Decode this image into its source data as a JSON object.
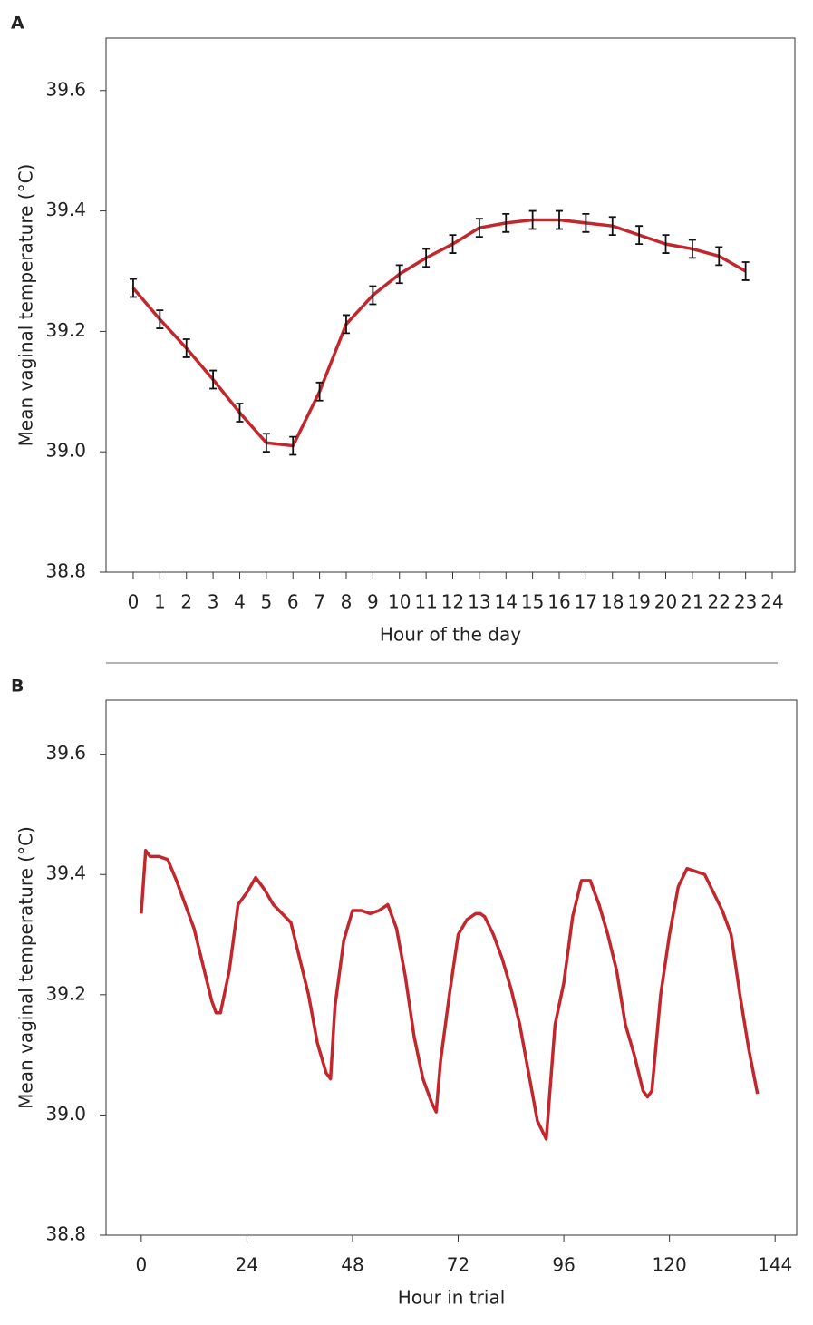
{
  "chart_data": [
    {
      "type": "line",
      "panel": "A",
      "xlabel": "Hour of the day",
      "ylabel": "Mean vaginal temperature (°C)",
      "x": [
        0,
        1,
        2,
        3,
        4,
        5,
        6,
        7,
        8,
        9,
        10,
        11,
        12,
        13,
        14,
        15,
        16,
        17,
        18,
        19,
        20,
        21,
        22,
        23
      ],
      "series": [
        {
          "color": "#c1272d",
          "values": [
            39.272,
            39.22,
            39.172,
            39.12,
            39.065,
            39.015,
            39.01,
            39.1,
            39.212,
            39.26,
            39.295,
            39.322,
            39.345,
            39.372,
            39.38,
            39.385,
            39.385,
            39.38,
            39.375,
            39.36,
            39.345,
            39.337,
            39.325,
            39.3
          ],
          "errors": [
            0.015,
            0.015,
            0.015,
            0.015,
            0.015,
            0.015,
            0.015,
            0.015,
            0.015,
            0.015,
            0.015,
            0.015,
            0.015,
            0.015,
            0.015,
            0.015,
            0.015,
            0.015,
            0.015,
            0.015,
            0.015,
            0.015,
            0.015,
            0.015
          ]
        }
      ],
      "xlim": [
        -1.02,
        24.85
      ],
      "xticks": [
        0,
        1,
        2,
        3,
        4,
        5,
        6,
        7,
        8,
        9,
        10,
        11,
        12,
        13,
        14,
        15,
        16,
        17,
        18,
        19,
        20,
        21,
        22,
        23,
        24
      ],
      "ylim": [
        38.8,
        39.687
      ],
      "yticks": [
        38.8,
        {
          "value": 39,
          "label": "39.0"
        },
        39.2,
        39.4,
        39.6
      ]
    },
    {
      "type": "line",
      "panel": "B",
      "xlabel": "Hour in trial",
      "ylabel": "Mean vaginal temperature (°C)",
      "x": [
        0,
        1,
        2,
        4,
        6,
        8,
        10,
        12,
        14,
        16,
        17,
        18,
        20,
        22,
        24,
        26,
        28,
        30,
        32,
        34,
        36,
        38,
        40,
        42,
        43,
        44,
        46,
        48,
        50,
        52,
        54,
        56,
        58,
        60,
        62,
        64,
        66,
        67,
        68,
        70,
        72,
        74,
        76,
        77,
        78,
        80,
        82,
        84,
        86,
        88,
        90,
        92,
        94,
        96,
        98,
        100,
        102,
        104,
        106,
        108,
        110,
        112,
        114,
        115,
        116,
        118,
        120,
        122,
        124,
        126,
        128,
        130,
        132,
        134,
        136,
        138,
        140
      ],
      "series": [
        {
          "color": "#c1272d",
          "values": [
            39.335,
            39.44,
            39.43,
            39.43,
            39.425,
            39.39,
            39.35,
            39.31,
            39.25,
            39.19,
            39.17,
            39.17,
            39.24,
            39.35,
            39.37,
            39.395,
            39.375,
            39.35,
            39.335,
            39.32,
            39.26,
            39.2,
            39.12,
            39.07,
            39.06,
            39.18,
            39.29,
            39.34,
            39.34,
            39.335,
            39.34,
            39.35,
            39.31,
            39.23,
            39.13,
            39.06,
            39.02,
            39.005,
            39.09,
            39.2,
            39.3,
            39.325,
            39.335,
            39.335,
            39.33,
            39.3,
            39.26,
            39.21,
            39.15,
            39.07,
            38.99,
            38.96,
            39.15,
            39.22,
            39.33,
            39.39,
            39.39,
            39.35,
            39.3,
            39.24,
            39.15,
            39.1,
            39.04,
            39.03,
            39.04,
            39.2,
            39.3,
            39.38,
            39.41,
            39.405,
            39.4,
            39.37,
            39.34,
            39.3,
            39.2,
            39.11,
            39.035
          ]
        }
      ],
      "xlim": [
        -8,
        148.9
      ],
      "xticks": [
        0,
        24,
        48,
        72,
        96,
        120,
        144
      ],
      "ylim": [
        38.8,
        39.69
      ],
      "yticks": [
        38.8,
        {
          "value": 39,
          "label": "39.0"
        },
        39.2,
        39.4,
        39.6
      ]
    }
  ]
}
